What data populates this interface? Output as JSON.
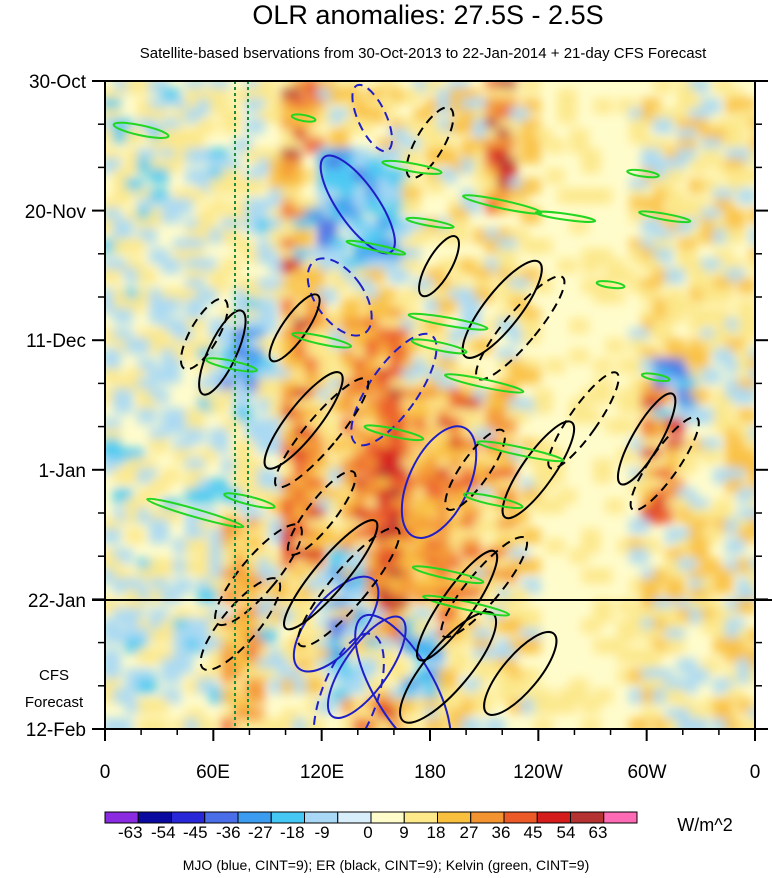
{
  "chart_data": {
    "type": "heatmap",
    "title": "OLR anomalies: 27.5S - 2.5S",
    "subtitle": "Satellite-based bservations from 30-Oct-2013 to 22-Jan-2014 + 21-day CFS Forecast",
    "y_ticks": [
      "30-Oct",
      "20-Nov",
      "11-Dec",
      "1-Jan",
      "22-Jan",
      "12-Feb"
    ],
    "x_ticks": [
      "0",
      "60E",
      "120E",
      "180",
      "120W",
      "60W",
      "0"
    ],
    "x_range_deg_east": [
      0,
      360
    ],
    "time_range_days_since_start": [
      0,
      105
    ],
    "observation_end": "22-Jan",
    "forecast_label_lines": [
      "CFS",
      "Forecast"
    ],
    "colorbar": {
      "labels": [
        "-63",
        "-54",
        "-45",
        "-36",
        "-27",
        "-18",
        "-9",
        "0",
        "9",
        "18",
        "27",
        "36",
        "45",
        "54",
        "63"
      ],
      "colors": [
        "#8a2be2",
        "#0a0aa0",
        "#2828d8",
        "#4a6ee8",
        "#3c9cf0",
        "#46c8f5",
        "#a8d8f5",
        "#d8eefa",
        "#fffccc",
        "#fde88a",
        "#f9c040",
        "#f39431",
        "#ec5a28",
        "#d51c1c",
        "#b43232",
        "#ff6ab4"
      ],
      "units": "W/m^2"
    },
    "legend_text": "MJO (blue, CINT=9); ER (black, CINT=9); Kelvin (green, CINT=9)",
    "overlays": {
      "mjo_color": "#1f1fc8",
      "er_color": "#000000",
      "kelvin_color": "#22d622",
      "reference_lines_color": "#1b8a3a"
    }
  }
}
